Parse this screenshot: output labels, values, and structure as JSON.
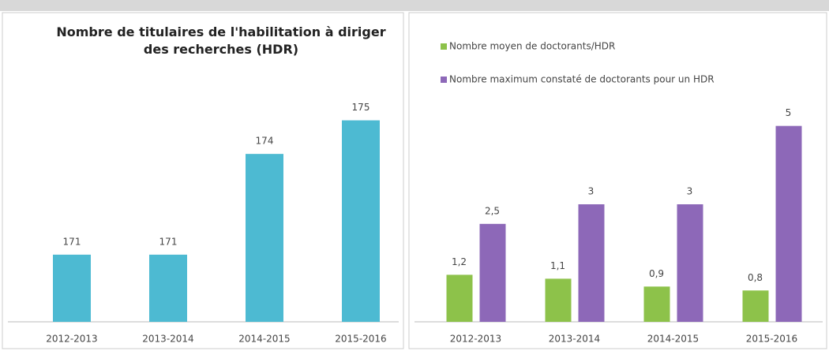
{
  "chart_data": [
    {
      "type": "bar",
      "title": "Nombre de titulaires de l'habilitation à diriger des recherches (HDR)",
      "categories": [
        "2012-2013",
        "2013-2014",
        "2014-2015",
        "2015-2016"
      ],
      "values": [
        171,
        171,
        174,
        175
      ],
      "color": "#4dbad2",
      "ylim": [
        169,
        176
      ]
    },
    {
      "type": "grouped-bar",
      "categories": [
        "2012-2013",
        "2013-2014",
        "2014-2015",
        "2015-2016"
      ],
      "series": [
        {
          "name": "Nombre moyen de doctorants/HDR",
          "color": "#8dc24a",
          "values": [
            1.2,
            1.1,
            0.9,
            0.8
          ],
          "value_labels": [
            "1,2",
            "1,1",
            "0,9",
            "0,8"
          ]
        },
        {
          "name": "Nombre maximum constaté de doctorants pour un HDR",
          "color": "#8d68b8",
          "values": [
            2.5,
            3,
            3,
            5
          ],
          "value_labels": [
            "2,5",
            "3",
            "3",
            "5"
          ]
        }
      ],
      "ylim": [
        0,
        6
      ],
      "legend": "top-left"
    }
  ]
}
